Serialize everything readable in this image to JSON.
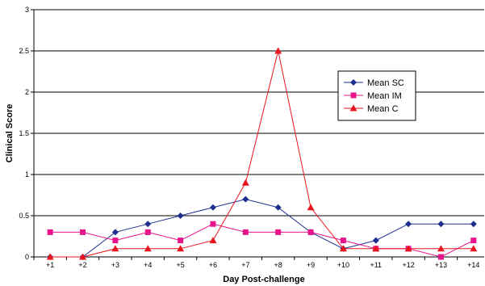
{
  "chart_data": {
    "type": "line",
    "xlabel": "Day Post-challenge",
    "ylabel": "Clinical Score",
    "categories": [
      "+1",
      "+2",
      "+3",
      "+4",
      "+5",
      "+6",
      "+7",
      "+8",
      "+9",
      "+10",
      "+11",
      "+12",
      "+13",
      "+14"
    ],
    "ylim": [
      0,
      3
    ],
    "yticks": [
      0,
      0.5,
      1,
      1.5,
      2,
      2.5,
      3
    ],
    "ytick_labels": [
      "0",
      "0.5",
      "1",
      "1.5",
      "2",
      "2.5",
      "3"
    ],
    "grid": "horizontal",
    "legend_position": "right",
    "series": [
      {
        "name": "Mean SC",
        "color": "#1F2F8F",
        "marker": "diamond",
        "values": [
          0,
          0,
          0.3,
          0.4,
          0.5,
          0.6,
          0.7,
          0.6,
          0.3,
          0.1,
          0.2,
          0.4,
          0.4,
          0.4
        ]
      },
      {
        "name": "Mean IM",
        "color": "#E8148C",
        "marker": "square",
        "values": [
          0.3,
          0.3,
          0.2,
          0.3,
          0.2,
          0.4,
          0.3,
          0.3,
          0.3,
          0.2,
          0.1,
          0.1,
          0,
          0.2
        ]
      },
      {
        "name": "Mean C",
        "color": "#E8141E",
        "marker": "triangle",
        "values": [
          0,
          0,
          0.1,
          0.1,
          0.1,
          0.2,
          0.9,
          2.5,
          0.6,
          0.1,
          0.1,
          0.1,
          0.1,
          0.1
        ]
      }
    ]
  }
}
